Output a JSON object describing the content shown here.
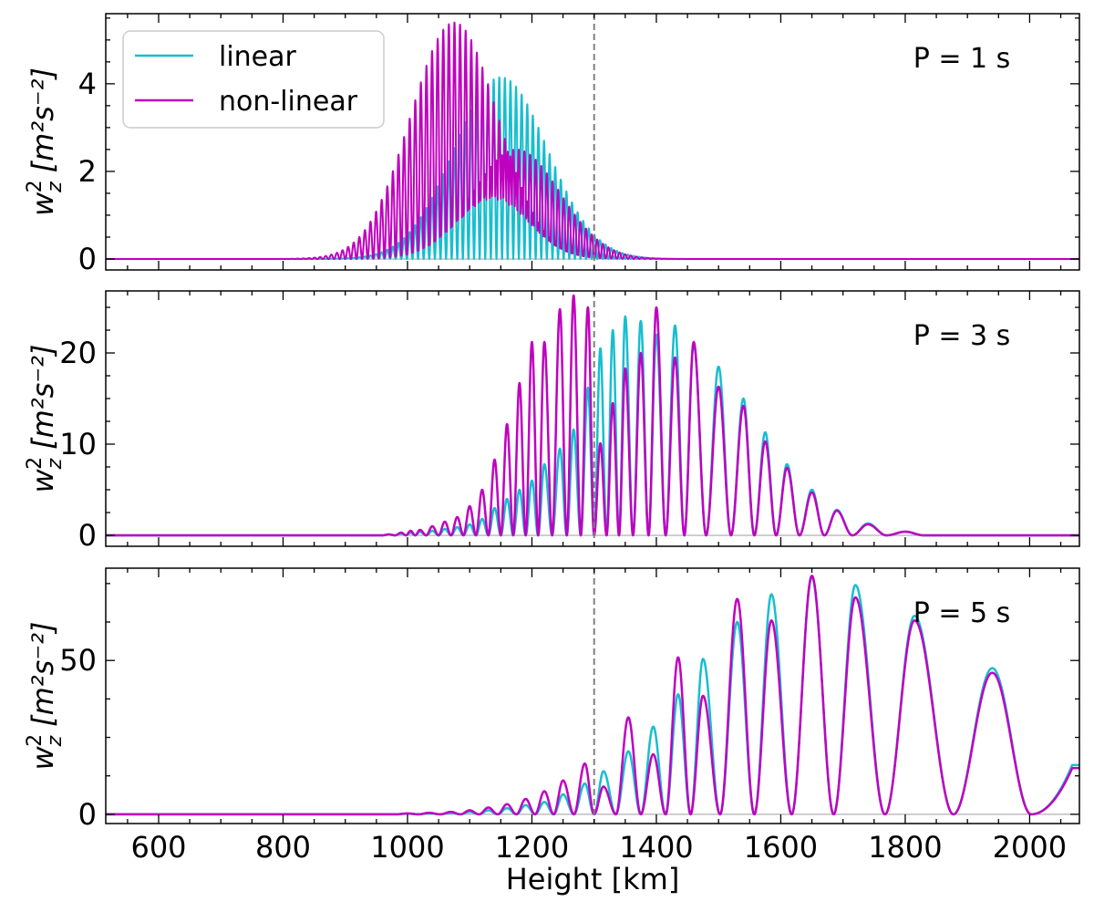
{
  "colors": {
    "linear": "#17becf",
    "nonlinear": "#c000c0",
    "vline": "#808080",
    "zero": "#b0b0b0",
    "frame": "#000000"
  },
  "legend": {
    "items": [
      {
        "label": "linear",
        "color": "#17becf"
      },
      {
        "label": "non-linear",
        "color": "#c000c0"
      }
    ],
    "location": "upper-left"
  },
  "xaxis": {
    "label": "Height [km]",
    "ticks": [
      "600",
      "800",
      "1000",
      "1200",
      "1400",
      "1600",
      "1800",
      "2000"
    ]
  },
  "chart_data": [
    {
      "type": "line",
      "panel_label": "P = 1 s",
      "ylabel_base": "w",
      "ylabel_sub": "z",
      "ylabel_sup": "2",
      "ylabel_units": "[m²s⁻²]",
      "xlim": [
        515,
        2080
      ],
      "ylim": [
        -0.25,
        5.6
      ],
      "yticks": [
        "0",
        "2",
        "4"
      ],
      "ytick_values": [
        0,
        2,
        4
      ],
      "vline_x": 1300,
      "series": [
        {
          "name": "linear",
          "envelope_center_km": 1150,
          "envelope_sigma_km": 75,
          "peak": 4.15,
          "period_km": 9,
          "shape": "oscillation"
        },
        {
          "name": "non-linear",
          "envelope_center_km": 1075,
          "envelope_sigma_km": 70,
          "peak": 5.4,
          "period_km": 9,
          "shape": "oscillation",
          "overlay_envelope_center_km": 1175,
          "overlay_envelope_sigma_km": 70,
          "overlay_peak": 2.5
        }
      ]
    },
    {
      "type": "line",
      "panel_label": "P = 3 s",
      "ylabel_base": "w",
      "ylabel_sub": "z",
      "ylabel_sup": "2",
      "ylabel_units": "[m²s⁻²]",
      "xlim": [
        515,
        2080
      ],
      "ylim": [
        -1.2,
        26.8
      ],
      "yticks": [
        "0",
        "10",
        "20"
      ],
      "ytick_values": [
        0,
        10,
        20
      ],
      "vline_x": 1300,
      "series": [
        {
          "name": "linear",
          "peaks_x": [
            970,
            990,
            1005,
            1020,
            1040,
            1060,
            1080,
            1100,
            1120,
            1140,
            1160,
            1180,
            1200,
            1220,
            1245,
            1267,
            1290,
            1310,
            1330,
            1350,
            1375,
            1400,
            1430,
            1460,
            1500,
            1540,
            1575,
            1610,
            1650,
            1690,
            1740,
            1800
          ],
          "peaks_y": [
            0.1,
            0.2,
            0.3,
            0.4,
            0.5,
            0.7,
            0.9,
            1.2,
            1.8,
            3.0,
            4.0,
            5.0,
            6.0,
            7.8,
            9.5,
            11.6,
            16.2,
            20.5,
            22.5,
            24.0,
            23.5,
            22.0,
            23.0,
            21.0,
            18.5,
            15.0,
            11.3,
            7.8,
            5.0,
            2.8,
            1.3,
            0.4
          ]
        },
        {
          "name": "non-linear",
          "peaks_x": [
            970,
            990,
            1005,
            1020,
            1040,
            1060,
            1080,
            1100,
            1120,
            1140,
            1160,
            1180,
            1200,
            1220,
            1245,
            1267,
            1290,
            1310,
            1330,
            1350,
            1375,
            1400,
            1430,
            1460,
            1500,
            1540,
            1575,
            1610,
            1650,
            1690,
            1740,
            1800
          ],
          "peaks_y": [
            0.1,
            0.3,
            0.5,
            0.6,
            1.0,
            1.5,
            2.0,
            3.2,
            5.0,
            8.3,
            12.2,
            16.7,
            21.2,
            21.2,
            24.8,
            26.3,
            25.0,
            10.1,
            14.5,
            18.3,
            20.0,
            25.0,
            19.5,
            21.2,
            16.3,
            14.2,
            10.3,
            7.4,
            4.7,
            2.7,
            1.2,
            0.4
          ]
        }
      ]
    },
    {
      "type": "line",
      "panel_label": "P = 5 s",
      "ylabel_base": "w",
      "ylabel_sub": "z",
      "ylabel_sup": "2",
      "ylabel_units": "[m²s⁻²]",
      "xlim": [
        515,
        2080
      ],
      "ylim": [
        -3,
        80
      ],
      "yticks": [
        "0",
        "50"
      ],
      "ytick_values": [
        0,
        50
      ],
      "vline_x": 1300,
      "series": [
        {
          "name": "linear",
          "peaks_x": [
            1000,
            1035,
            1070,
            1100,
            1130,
            1160,
            1190,
            1220,
            1250,
            1285,
            1315,
            1355,
            1395,
            1435,
            1475,
            1530,
            1585,
            1650,
            1720,
            1815,
            1940
          ],
          "peaks_y": [
            0.2,
            0.3,
            0.5,
            0.8,
            1.3,
            2.0,
            3.0,
            4.0,
            6.5,
            10.0,
            14.0,
            20.5,
            28.5,
            39.0,
            50.5,
            62.5,
            71.5,
            77.0,
            74.5,
            64.5,
            47.5
          ],
          "tail_end": 16.0
        },
        {
          "name": "non-linear",
          "peaks_x": [
            1000,
            1035,
            1070,
            1100,
            1130,
            1160,
            1190,
            1220,
            1250,
            1285,
            1315,
            1355,
            1395,
            1435,
            1475,
            1530,
            1585,
            1650,
            1720,
            1815,
            1940
          ],
          "peaks_y": [
            0.3,
            0.5,
            0.8,
            1.3,
            2.2,
            3.3,
            5.0,
            7.5,
            11.0,
            16.5,
            9.0,
            31.5,
            19.5,
            51.0,
            38.5,
            70.0,
            63.0,
            77.5,
            70.5,
            63.0,
            46.0
          ],
          "tail_end": 15.0
        }
      ]
    }
  ]
}
